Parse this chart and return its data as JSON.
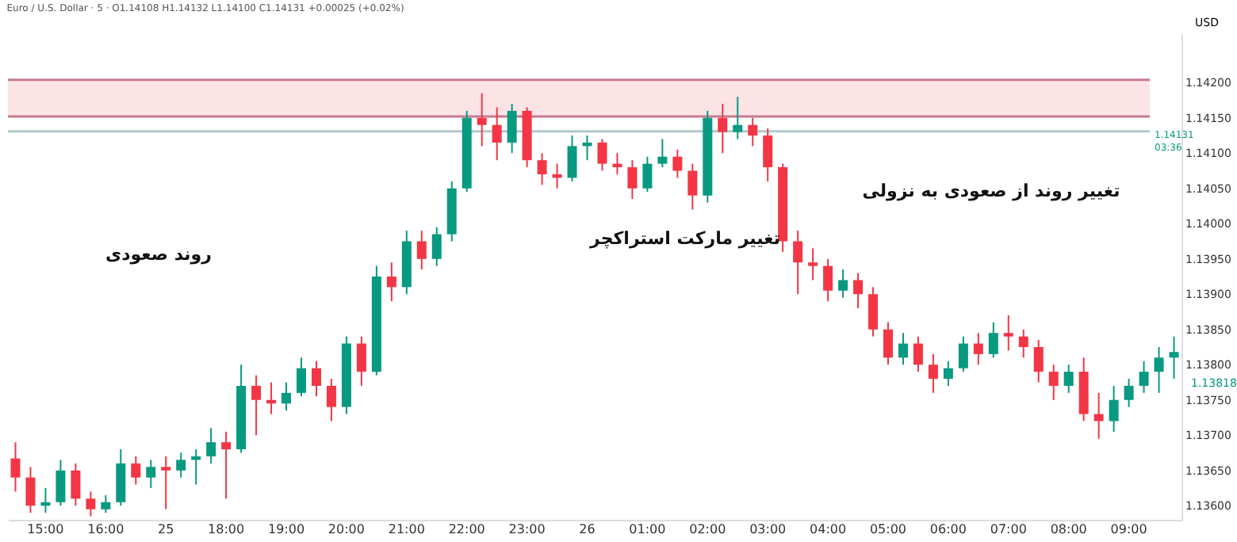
{
  "chart_data": {
    "type": "candlestick",
    "title": "Euro / U.S. Dollar · 5 · O1.14108 H1.14132 L1.14100 C1.14131 +0.00025 (+0.02%)",
    "ylabel": "USD",
    "colors": [
      "#f23645",
      "#f23645",
      "#089981",
      "#089981",
      "#f23645",
      "#f23645",
      "#089981",
      "#089981",
      "#f23645",
      "#089981",
      "#f23645",
      "#089981",
      "#089981",
      "#089981",
      "#f23645",
      "#089981",
      "#f23645",
      "#f23645",
      "#089981",
      "#089981",
      "#f23645",
      "#f23645",
      "#089981",
      "#f23645",
      "#089981",
      "#f23645",
      "#089981",
      "#f23645",
      "#089981",
      "#089981",
      "#089981",
      "#f23645",
      "#f23645",
      "#089981",
      "#f23645",
      "#f23645",
      "#f23645",
      "#089981",
      "#089981",
      "#f23645",
      "#f23645",
      "#f23645",
      "#089981",
      "#089981",
      "#f23645",
      "#f23645",
      "#089981",
      "#f23645",
      "#089981",
      "#f23645",
      "#f23645",
      "#f23645",
      "#f23645",
      "#f23645",
      "#f23645",
      "#089981",
      "#f23645",
      "#f23645",
      "#f23645",
      "#089981",
      "#f23645",
      "#f23645",
      "#089981",
      "#089981",
      "#f23645",
      "#089981",
      "#f23645",
      "#f23645",
      "#f23645",
      "#f23645",
      "#089981",
      "#f23645",
      "#f23645",
      "#089981",
      "#089981",
      "#089981",
      "#089981",
      "#089981"
    ],
    "categories": [
      null,
      null,
      "15:00",
      null,
      null,
      null,
      "16:00",
      null,
      null,
      null,
      "25",
      null,
      null,
      null,
      "18:00",
      null,
      null,
      null,
      "19:00",
      null,
      null,
      null,
      "20:00",
      null,
      null,
      null,
      "21:00",
      null,
      null,
      null,
      "22:00",
      null,
      null,
      null,
      "23:00",
      null,
      null,
      null,
      "26",
      null,
      null,
      null,
      "01:00",
      null,
      null,
      null,
      "02:00",
      null,
      null,
      null,
      "03:00",
      null,
      null,
      null,
      "04:00",
      null,
      null,
      null,
      "05:00",
      null,
      null,
      null,
      "06:00",
      null,
      null,
      null,
      "07:00",
      null,
      null,
      null,
      "08:00",
      null,
      null,
      null,
      "09:00",
      null,
      null,
      null
    ],
    "ohlc": [
      [
        1.13667,
        1.1369,
        1.1362,
        1.1364
      ],
      [
        1.1364,
        1.13655,
        1.1359,
        1.136
      ],
      [
        1.136,
        1.13625,
        1.1359,
        1.13605
      ],
      [
        1.13605,
        1.13665,
        1.136,
        1.1365
      ],
      [
        1.1365,
        1.1366,
        1.136,
        1.1361
      ],
      [
        1.1361,
        1.1362,
        1.13585,
        1.13595
      ],
      [
        1.13595,
        1.13615,
        1.1359,
        1.13605
      ],
      [
        1.13605,
        1.1368,
        1.136,
        1.1366
      ],
      [
        1.1366,
        1.1367,
        1.1363,
        1.1364
      ],
      [
        1.1364,
        1.13665,
        1.13625,
        1.13655
      ],
      [
        1.13655,
        1.1367,
        1.13595,
        1.1365
      ],
      [
        1.1365,
        1.13675,
        1.1364,
        1.13665
      ],
      [
        1.13665,
        1.1368,
        1.1363,
        1.1367
      ],
      [
        1.1367,
        1.1371,
        1.1366,
        1.1369
      ],
      [
        1.1369,
        1.13705,
        1.1361,
        1.1368
      ],
      [
        1.1368,
        1.138,
        1.13675,
        1.1377
      ],
      [
        1.1377,
        1.13785,
        1.137,
        1.1375
      ],
      [
        1.1375,
        1.13775,
        1.1373,
        1.13745
      ],
      [
        1.13745,
        1.13775,
        1.13735,
        1.1376
      ],
      [
        1.1376,
        1.1381,
        1.13755,
        1.13795
      ],
      [
        1.13795,
        1.13805,
        1.13755,
        1.1377
      ],
      [
        1.1377,
        1.1378,
        1.1372,
        1.1374
      ],
      [
        1.1374,
        1.1384,
        1.1373,
        1.1383
      ],
      [
        1.1383,
        1.1384,
        1.1377,
        1.1379
      ],
      [
        1.1379,
        1.1394,
        1.13785,
        1.13925
      ],
      [
        1.13925,
        1.13945,
        1.1389,
        1.1391
      ],
      [
        1.1391,
        1.1399,
        1.139,
        1.13975
      ],
      [
        1.13975,
        1.1399,
        1.13935,
        1.1395
      ],
      [
        1.1395,
        1.13995,
        1.1394,
        1.13985
      ],
      [
        1.13985,
        1.1406,
        1.13975,
        1.1405
      ],
      [
        1.1405,
        1.1416,
        1.14045,
        1.1415
      ],
      [
        1.1415,
        1.14185,
        1.1411,
        1.1414
      ],
      [
        1.1414,
        1.14165,
        1.1409,
        1.14115
      ],
      [
        1.14115,
        1.1417,
        1.141,
        1.1416
      ],
      [
        1.1416,
        1.14165,
        1.1408,
        1.1409
      ],
      [
        1.1409,
        1.141,
        1.14055,
        1.1407
      ],
      [
        1.1407,
        1.14085,
        1.1405,
        1.14065
      ],
      [
        1.14065,
        1.14125,
        1.1406,
        1.1411
      ],
      [
        1.1411,
        1.14125,
        1.1409,
        1.14115
      ],
      [
        1.14115,
        1.1412,
        1.14075,
        1.14085
      ],
      [
        1.14085,
        1.141,
        1.1407,
        1.1408
      ],
      [
        1.1408,
        1.1409,
        1.14035,
        1.1405
      ],
      [
        1.1405,
        1.14095,
        1.14045,
        1.14085
      ],
      [
        1.14085,
        1.1412,
        1.1408,
        1.14095
      ],
      [
        1.14095,
        1.14105,
        1.14065,
        1.14075
      ],
      [
        1.14075,
        1.14085,
        1.1402,
        1.1404
      ],
      [
        1.1404,
        1.1416,
        1.1403,
        1.1415
      ],
      [
        1.1415,
        1.1417,
        1.141,
        1.1413
      ],
      [
        1.1413,
        1.1418,
        1.1412,
        1.1414
      ],
      [
        1.1414,
        1.1415,
        1.1411,
        1.14125
      ],
      [
        1.14125,
        1.14135,
        1.1406,
        1.1408
      ],
      [
        1.1408,
        1.14085,
        1.1396,
        1.13975
      ],
      [
        1.13975,
        1.1399,
        1.139,
        1.13945
      ],
      [
        1.13945,
        1.13965,
        1.1392,
        1.1394
      ],
      [
        1.1394,
        1.1395,
        1.1389,
        1.13905
      ],
      [
        1.13905,
        1.13935,
        1.13895,
        1.1392
      ],
      [
        1.1392,
        1.1393,
        1.1388,
        1.139
      ],
      [
        1.139,
        1.1391,
        1.1384,
        1.1385
      ],
      [
        1.1385,
        1.1386,
        1.138,
        1.1381
      ],
      [
        1.1381,
        1.13845,
        1.138,
        1.1383
      ],
      [
        1.1383,
        1.1384,
        1.1379,
        1.138
      ],
      [
        1.138,
        1.13815,
        1.1376,
        1.1378
      ],
      [
        1.1378,
        1.13805,
        1.1377,
        1.13795
      ],
      [
        1.13795,
        1.1384,
        1.1379,
        1.1383
      ],
      [
        1.1383,
        1.13845,
        1.138,
        1.13815
      ],
      [
        1.13815,
        1.1386,
        1.1381,
        1.13845
      ],
      [
        1.13845,
        1.1387,
        1.1382,
        1.1384
      ],
      [
        1.1384,
        1.1385,
        1.1381,
        1.13825
      ],
      [
        1.13825,
        1.13835,
        1.13775,
        1.1379
      ],
      [
        1.1379,
        1.138,
        1.1375,
        1.1377
      ],
      [
        1.1377,
        1.138,
        1.1376,
        1.1379
      ],
      [
        1.1379,
        1.1381,
        1.1372,
        1.1373
      ],
      [
        1.1373,
        1.1376,
        1.13695,
        1.1372
      ],
      [
        1.1372,
        1.1377,
        1.13705,
        1.1375
      ],
      [
        1.1375,
        1.1378,
        1.1374,
        1.1377
      ],
      [
        1.1377,
        1.13805,
        1.1376,
        1.1379
      ],
      [
        1.1379,
        1.13825,
        1.1376,
        1.1381
      ],
      [
        1.1381,
        1.1384,
        1.1378,
        1.13818
      ]
    ],
    "ylim": [
      1.1358,
      1.1427
    ],
    "yticks": [
      {
        "value": 1.136,
        "label": "1.13600"
      },
      {
        "value": 1.1365,
        "label": "1.13650"
      },
      {
        "value": 1.137,
        "label": "1.13700"
      },
      {
        "value": 1.1375,
        "label": "1.13750"
      },
      {
        "value": 1.138,
        "label": "1.13800"
      },
      {
        "value": 1.1385,
        "label": "1.13850"
      },
      {
        "value": 1.139,
        "label": "1.13900"
      },
      {
        "value": 1.1395,
        "label": "1.13950"
      },
      {
        "value": 1.14,
        "label": "1.14000"
      },
      {
        "value": 1.1405,
        "label": "1.14050"
      },
      {
        "value": 1.141,
        "label": "1.14100"
      },
      {
        "value": 1.1415,
        "label": "1.14150"
      },
      {
        "value": 1.142,
        "label": "1.14200"
      }
    ],
    "bands": [
      {
        "axis": "y",
        "from": 1.14152,
        "to": 1.14204,
        "color": "#fbe3e6"
      }
    ],
    "ref_lines": [
      {
        "axis": "y",
        "value": 1.14204,
        "color": "#c77a8c"
      },
      {
        "axis": "y",
        "value": 1.14152,
        "color": "#c77a8c"
      },
      {
        "axis": "y",
        "value": 1.14131,
        "label": "1.14131 03:36",
        "color": "#b2c8cc"
      }
    ],
    "annotations": [
      "روند صعودی",
      "تغییر مارکت استراکچر",
      "تغییر روند از صعودی به نزولی",
      "1.13818"
    ],
    "grid": false
  }
}
